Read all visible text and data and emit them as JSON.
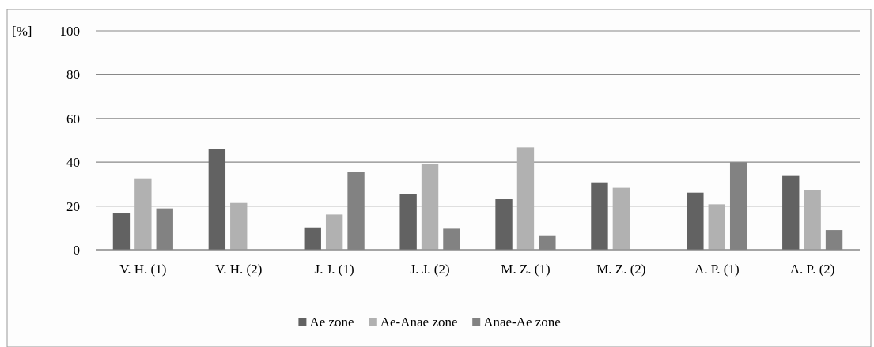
{
  "chart_data": {
    "type": "bar",
    "ylabel": "[%]",
    "categories": [
      "V. H. (1)",
      "V. H. (2)",
      "J. J. (1)",
      "J. J. (2)",
      "M. Z. (1)",
      "M. Z. (2)",
      "A. P. (1)",
      "A. P. (2)"
    ],
    "series": [
      {
        "name": "Ae zone",
        "color": "#626262",
        "values": [
          16.6,
          46.1,
          10.2,
          25.5,
          23.1,
          30.8,
          26.1,
          33.7
        ]
      },
      {
        "name": "Ae-Anae zone",
        "color": "#b1b1b1",
        "values": [
          32.6,
          21.4,
          16.1,
          39.0,
          46.8,
          28.3,
          20.8,
          27.3
        ]
      },
      {
        "name": "Anae-Ae zone",
        "color": "#828282",
        "values": [
          18.9,
          null,
          35.5,
          9.6,
          6.6,
          null,
          40.0,
          9.0
        ]
      }
    ],
    "ylim": [
      0,
      100
    ],
    "yticks": [
      0,
      20,
      40,
      60,
      80,
      100
    ],
    "grid": "y",
    "legend": "bottom"
  }
}
